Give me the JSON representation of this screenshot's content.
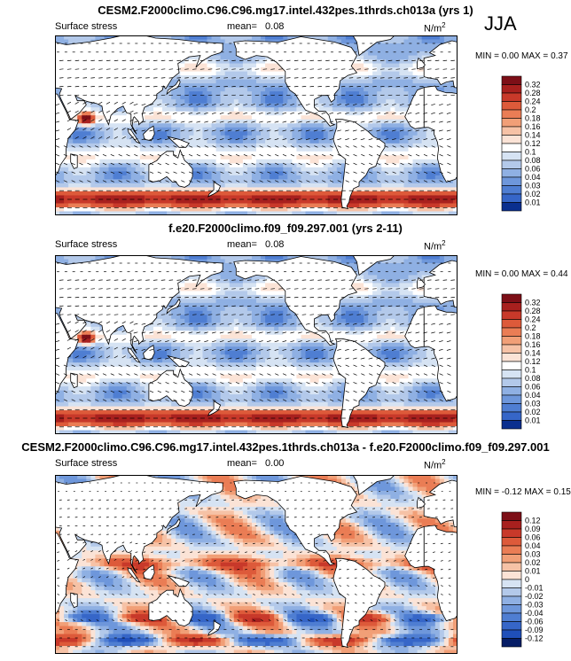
{
  "season": "JJA",
  "colors": {
    "land": "#ffffff",
    "pos": [
      "#ffffff",
      "#fbe3d6",
      "#f6c2a6",
      "#f19f77",
      "#ea7d55",
      "#dd5a3a",
      "#c8392a",
      "#a8201e",
      "#7d0f17"
    ],
    "neg": [
      "#ffffff",
      "#d6e3f3",
      "#b3c9ea",
      "#8fb0e3",
      "#6e97db",
      "#4f7ed2",
      "#3666c8",
      "#1f4fb9",
      "#0a2f8f",
      "#061d66"
    ]
  },
  "chart_data": [
    {
      "type": "heatmap",
      "panel": "top",
      "title": "CESM2.F2000climo.C96.C96.mg17.intel.432pes.1thrds.ch013a (yrs 1)",
      "left_label": "Surface stress",
      "mean_label": "mean=",
      "mean_value": "0.08",
      "units_base": "N/m",
      "units_exp": "2",
      "min_label": "MIN =",
      "min_value": "0.00",
      "max_label": "MAX =",
      "max_value": "0.37",
      "colorbar_levels": [
        "0.32",
        "0.28",
        "0.24",
        "0.2",
        "0.18",
        "0.16",
        "0.14",
        "0.12",
        "0.1",
        "0.08",
        "0.06",
        "0.04",
        "0.03",
        "0.02",
        "0.01"
      ],
      "colorbar_colors": [
        "#7d0f17",
        "#a8201e",
        "#c8392a",
        "#dd5a3a",
        "#ea7d55",
        "#f19f77",
        "#f6c2a6",
        "#fbe3d6",
        "#ffffff",
        "#d6e3f3",
        "#b3c9ea",
        "#8fb0e3",
        "#6e97db",
        "#4f7ed2",
        "#3666c8",
        "#0a2f8f"
      ]
    },
    {
      "type": "heatmap",
      "panel": "middle",
      "title": "f.e20.F2000climo.f09_f09.297.001 (yrs 2-11)",
      "left_label": "Surface stress",
      "mean_label": "mean=",
      "mean_value": "0.08",
      "units_base": "N/m",
      "units_exp": "2",
      "min_label": "MIN =",
      "min_value": "0.00",
      "max_label": "MAX =",
      "max_value": "0.44",
      "colorbar_levels": [
        "0.32",
        "0.28",
        "0.24",
        "0.2",
        "0.18",
        "0.16",
        "0.14",
        "0.12",
        "0.1",
        "0.08",
        "0.06",
        "0.04",
        "0.03",
        "0.02",
        "0.01"
      ],
      "colorbar_colors": [
        "#7d0f17",
        "#a8201e",
        "#c8392a",
        "#dd5a3a",
        "#ea7d55",
        "#f19f77",
        "#f6c2a6",
        "#fbe3d6",
        "#ffffff",
        "#d6e3f3",
        "#b3c9ea",
        "#8fb0e3",
        "#6e97db",
        "#4f7ed2",
        "#3666c8",
        "#0a2f8f"
      ]
    },
    {
      "type": "heatmap",
      "panel": "bottom",
      "title": "CESM2.F2000climo.C96.C96.mg17.intel.432pes.1thrds.ch013a - f.e20.F2000climo.f09_f09.297.001",
      "left_label": "Surface stress",
      "mean_label": "mean=",
      "mean_value": "0.00",
      "units_base": "N/m",
      "units_exp": "2",
      "min_label": "MIN =",
      "min_value": "-0.12",
      "max_label": "MAX =",
      "max_value": "0.15",
      "colorbar_levels": [
        "0.12",
        "0.09",
        "0.06",
        "0.04",
        "0.03",
        "0.02",
        "0.01",
        "0",
        "-0.01",
        "-0.02",
        "-0.03",
        "-0.04",
        "-0.06",
        "-0.09",
        "-0.12"
      ],
      "colorbar_colors": [
        "#7d0f17",
        "#a8201e",
        "#c8392a",
        "#dd5a3a",
        "#ea7d55",
        "#f19f77",
        "#f6c2a6",
        "#fbe3d6",
        "#d6e3f3",
        "#b3c9ea",
        "#8fb0e3",
        "#6e97db",
        "#4f7ed2",
        "#3666c8",
        "#1f4fb9",
        "#061d66"
      ]
    }
  ]
}
